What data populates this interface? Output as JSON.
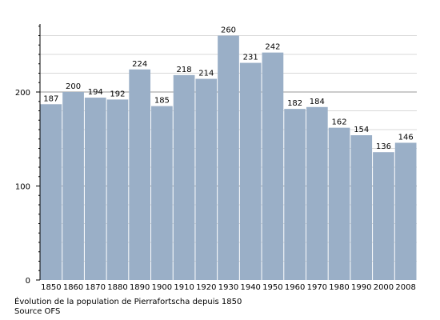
{
  "chart_data": {
    "type": "bar",
    "categories": [
      "1850",
      "1860",
      "1870",
      "1880",
      "1890",
      "1900",
      "1910",
      "1920",
      "1930",
      "1940",
      "1950",
      "1960",
      "1970",
      "1980",
      "1990",
      "2000",
      "2008"
    ],
    "values": [
      187,
      200,
      194,
      192,
      224,
      185,
      218,
      214,
      260,
      231,
      242,
      182,
      184,
      162,
      154,
      136,
      146
    ],
    "data_labels": [
      "187",
      "200",
      "194",
      "192",
      "224",
      "185",
      "218",
      "214",
      "260",
      "231",
      "242",
      "182",
      "184",
      "162",
      "154",
      "136",
      "146"
    ],
    "yticks": [
      0,
      100,
      200
    ],
    "ytick_labels": [
      "0",
      "100",
      "200"
    ],
    "minor_ytick_step": 20,
    "ylim": [
      0,
      270
    ],
    "grid": true,
    "bar_color": "#9aafc7",
    "grid_color": "#d9d9d9",
    "major_grid_color": "#999999",
    "caption_lines": [
      "Évolution de la population de Pierrafortscha depuis 1850",
      "Source OFS"
    ]
  }
}
